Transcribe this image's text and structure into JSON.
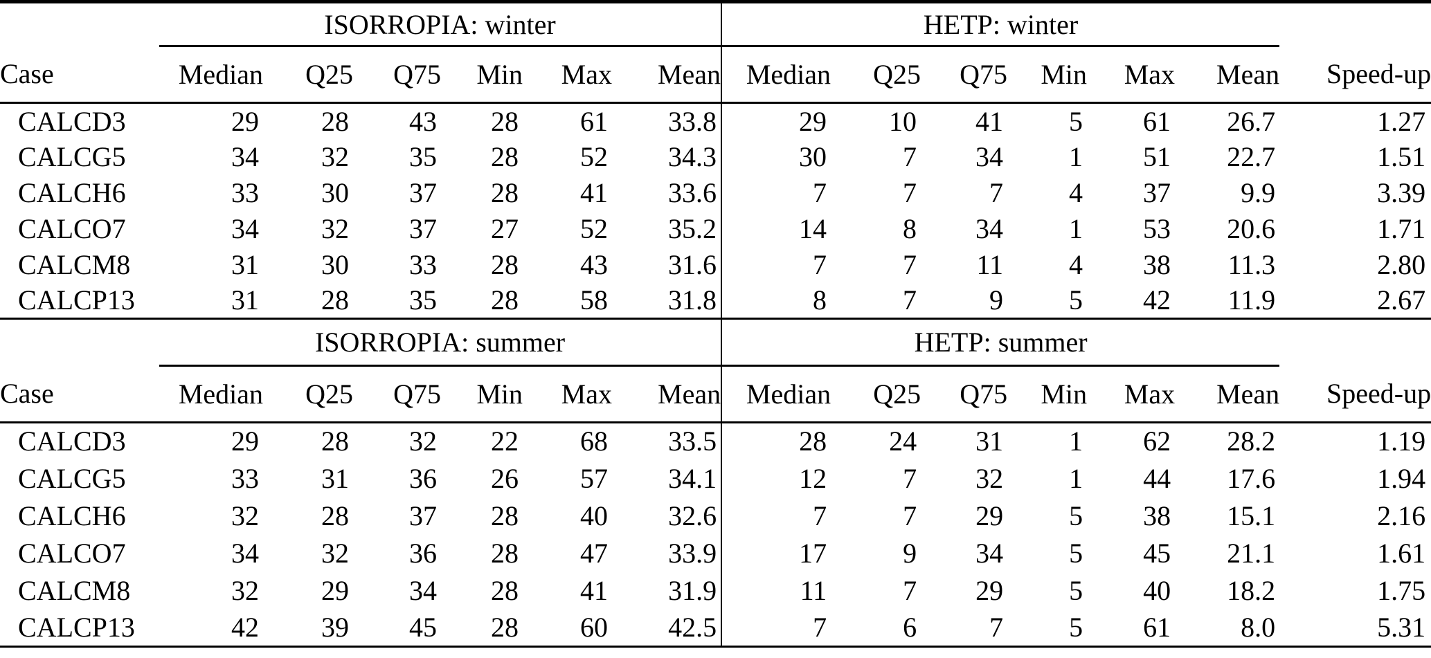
{
  "figure": {
    "kind": "paper-statistics-table"
  },
  "colors": {
    "text": "#000000",
    "background": "#ffffff",
    "rule": "#000000"
  },
  "tables": [
    {
      "id": "winter",
      "group_left": "ISORROPIA: winter",
      "group_right": "HETP: winter",
      "columns": [
        "Case",
        "Median",
        "Q25",
        "Q75",
        "Min",
        "Max",
        "Mean",
        "Median",
        "Q25",
        "Q75",
        "Min",
        "Max",
        "Mean",
        "Speed-up"
      ],
      "rows": [
        [
          "CALCD3",
          "29",
          "28",
          "43",
          "28",
          "61",
          "33.8",
          "29",
          "10",
          "41",
          "5",
          "61",
          "26.7",
          "1.27"
        ],
        [
          "CALCG5",
          "34",
          "32",
          "35",
          "28",
          "52",
          "34.3",
          "30",
          "7",
          "34",
          "1",
          "51",
          "22.7",
          "1.51"
        ],
        [
          "CALCH6",
          "33",
          "30",
          "37",
          "28",
          "41",
          "33.6",
          "7",
          "7",
          "7",
          "4",
          "37",
          "9.9",
          "3.39"
        ],
        [
          "CALCO7",
          "34",
          "32",
          "37",
          "27",
          "52",
          "35.2",
          "14",
          "8",
          "34",
          "1",
          "53",
          "20.6",
          "1.71"
        ],
        [
          "CALCM8",
          "31",
          "30",
          "33",
          "28",
          "43",
          "31.6",
          "7",
          "7",
          "11",
          "4",
          "38",
          "11.3",
          "2.80"
        ],
        [
          "CALCP13",
          "31",
          "28",
          "35",
          "28",
          "58",
          "31.8",
          "8",
          "7",
          "9",
          "5",
          "42",
          "11.9",
          "2.67"
        ]
      ]
    },
    {
      "id": "summer",
      "group_left": "ISORROPIA: summer",
      "group_right": "HETP: summer",
      "columns": [
        "Case",
        "Median",
        "Q25",
        "Q75",
        "Min",
        "Max",
        "Mean",
        "Median",
        "Q25",
        "Q75",
        "Min",
        "Max",
        "Mean",
        "Speed-up"
      ],
      "rows": [
        [
          "CALCD3",
          "29",
          "28",
          "32",
          "22",
          "68",
          "33.5",
          "28",
          "24",
          "31",
          "1",
          "62",
          "28.2",
          "1.19"
        ],
        [
          "CALCG5",
          "33",
          "31",
          "36",
          "26",
          "57",
          "34.1",
          "12",
          "7",
          "32",
          "1",
          "44",
          "17.6",
          "1.94"
        ],
        [
          "CALCH6",
          "32",
          "28",
          "37",
          "28",
          "40",
          "32.6",
          "7",
          "7",
          "29",
          "5",
          "38",
          "15.1",
          "2.16"
        ],
        [
          "CALCO7",
          "34",
          "32",
          "36",
          "28",
          "47",
          "33.9",
          "17",
          "9",
          "34",
          "5",
          "45",
          "21.1",
          "1.61"
        ],
        [
          "CALCM8",
          "32",
          "29",
          "34",
          "28",
          "41",
          "31.9",
          "11",
          "7",
          "29",
          "5",
          "40",
          "18.2",
          "1.75"
        ],
        [
          "CALCP13",
          "42",
          "39",
          "45",
          "28",
          "60",
          "42.5",
          "7",
          "6",
          "7",
          "5",
          "61",
          "8.0",
          "5.31"
        ]
      ]
    }
  ]
}
